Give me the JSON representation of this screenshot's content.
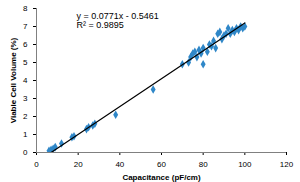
{
  "chart_data": {
    "type": "scatter",
    "x_label": "Capacitance (pF/cm)",
    "y_label": "Viable Cell Volume (%)",
    "xlim": [
      0,
      120
    ],
    "xticks": [
      0,
      20,
      40,
      60,
      80,
      100,
      120
    ],
    "ylim": [
      0,
      8
    ],
    "yticks": [
      0,
      1,
      2,
      3,
      4,
      5,
      6,
      7,
      8
    ],
    "grid": false,
    "annotations": [
      "y = 0.0771x - 0.5461",
      "R² = 0.9895"
    ],
    "series": [
      {
        "type": "scatter",
        "color": "#2f87c8",
        "marker": "diamond",
        "x": [
          6,
          7,
          8,
          9,
          12,
          17,
          18,
          24,
          25,
          27,
          28,
          38,
          56,
          70,
          73,
          74,
          75,
          76,
          77,
          78,
          79,
          80,
          80,
          82,
          83,
          84,
          85,
          86,
          87,
          88,
          89,
          90,
          91,
          92,
          93,
          94,
          95,
          96,
          97,
          98,
          99,
          100
        ],
        "values": [
          0.1,
          0.15,
          0.2,
          0.3,
          0.5,
          0.85,
          0.9,
          1.3,
          1.4,
          1.5,
          1.6,
          2.1,
          3.5,
          4.9,
          5.0,
          5.3,
          5.5,
          5.6,
          5.3,
          5.7,
          5.5,
          4.9,
          5.8,
          5.6,
          6.0,
          5.9,
          6.2,
          5.8,
          6.6,
          6.7,
          6.3,
          6.5,
          6.6,
          6.9,
          6.6,
          6.8,
          6.7,
          6.9,
          6.8,
          7.0,
          6.9,
          7.0
        ]
      },
      {
        "type": "line",
        "color": "#000000",
        "line_style": "solid",
        "x": [
          7,
          100
        ],
        "values": [
          0,
          7.2
        ]
      }
    ]
  }
}
